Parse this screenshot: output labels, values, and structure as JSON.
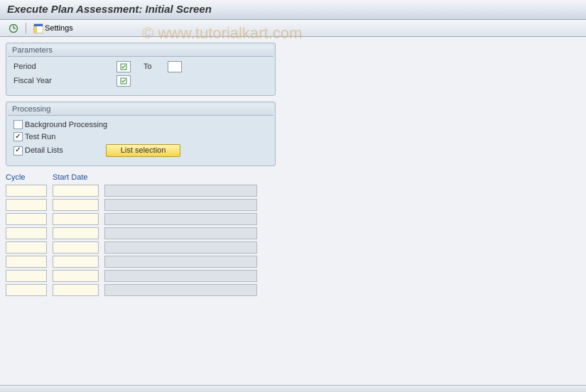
{
  "title": "Execute Plan Assessment: Initial Screen",
  "toolbar": {
    "execute_tooltip": "Execute",
    "settings_label": "Settings"
  },
  "watermark": "© www.tutorialkart.com",
  "parameters": {
    "title": "Parameters",
    "period_label": "Period",
    "to_label": "To",
    "fiscal_year_label": "Fiscal Year",
    "period_from": "",
    "period_to": "",
    "fiscal_year": ""
  },
  "processing": {
    "title": "Processing",
    "background_label": "Background Processing",
    "background_checked": false,
    "testrun_label": "Test Run",
    "testrun_checked": true,
    "detail_label": "Detail Lists",
    "detail_checked": true,
    "list_selection_label": "List selection"
  },
  "table": {
    "cycle_header": "Cycle",
    "startdate_header": "Start Date",
    "row_count": 8
  },
  "colors": {
    "group_bg": "#dce6ef",
    "group_border": "#a8b8c8",
    "header_link": "#1a4d9e",
    "input_yellow": "#fdfaea",
    "cell_gray": "#dce2e8",
    "btn_yellow_top": "#fef4b0",
    "btn_yellow_bottom": "#f5d54a"
  }
}
